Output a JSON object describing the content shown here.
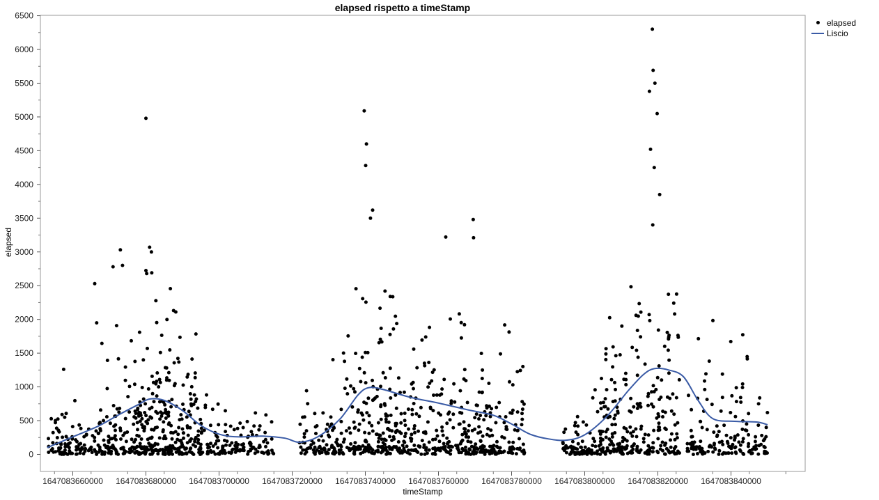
{
  "chart_data": {
    "type": "scatter",
    "title": "elapsed rispetto a timeStamp",
    "xlabel": "timeStamp",
    "ylabel": "elapsed",
    "xlim": [
      1647083650000,
      1647083860000
    ],
    "ylim": [
      -250,
      6500
    ],
    "x_ticks": [
      1647083660000,
      1647083680000,
      1647083700000,
      1647083720000,
      1647083740000,
      1647083760000,
      1647083780000,
      1647083800000,
      1647083820000,
      1647083840000
    ],
    "y_ticks": [
      0,
      500,
      1000,
      1500,
      2000,
      2500,
      3000,
      3500,
      4000,
      4500,
      5000,
      5500,
      6000,
      6500
    ],
    "grid": false,
    "legend_position": "top-right",
    "series": [
      {
        "name": "elapsed",
        "kind": "points",
        "color": "#000000",
        "x": [
          1647083680000,
          1647083739700,
          1647083740300,
          1647083740100,
          1647083742000,
          1647083741400,
          1647083818500,
          1647083818700,
          1647083819200,
          1647083819800,
          1647083817700,
          1647083818000,
          1647083819000,
          1647083820500,
          1647083818600,
          1647083673000,
          1647083673600,
          1647083681000,
          1647083681500,
          1647083681600,
          1647083680200,
          1647083769500,
          1647083762000,
          1647083769600,
          1647083671000,
          1647083666000,
          1647083657500
        ],
        "y": [
          4980,
          5090,
          4600,
          4280,
          3620,
          3500,
          6300,
          5690,
          5500,
          5050,
          5380,
          4520,
          4250,
          3850,
          3400,
          3030,
          2800,
          3070,
          3000,
          2690,
          2680,
          3480,
          3220,
          3210,
          2780,
          2530,
          1260
        ]
      },
      {
        "name": "Liscio",
        "kind": "line",
        "color": "#3a5ba6",
        "x": [
          1647083653000,
          1647083660000,
          1647083667000,
          1647083673000,
          1647083678000,
          1647083681000,
          1647083685000,
          1647083690000,
          1647083695000,
          1647083700000,
          1647083705000,
          1647083712000,
          1647083718000,
          1647083722000,
          1647083727000,
          1647083733000,
          1647083738000,
          1647083741000,
          1647083745000,
          1647083752000,
          1647083760000,
          1647083768000,
          1647083775000,
          1647083780000,
          1647083785000,
          1647083790000,
          1647083795000,
          1647083800000,
          1647083806000,
          1647083812000,
          1647083816000,
          1647083819000,
          1647083823000,
          1647083827000,
          1647083831000,
          1647083835000,
          1647083841000,
          1647083847000,
          1647083850000
        ],
        "y": [
          100,
          260,
          420,
          600,
          740,
          820,
          800,
          650,
          430,
          300,
          260,
          270,
          240,
          180,
          260,
          520,
          880,
          990,
          960,
          850,
          760,
          660,
          580,
          450,
          300,
          230,
          210,
          290,
          560,
          950,
          1180,
          1270,
          1250,
          1150,
          800,
          530,
          490,
          480,
          440
        ]
      }
    ]
  }
}
